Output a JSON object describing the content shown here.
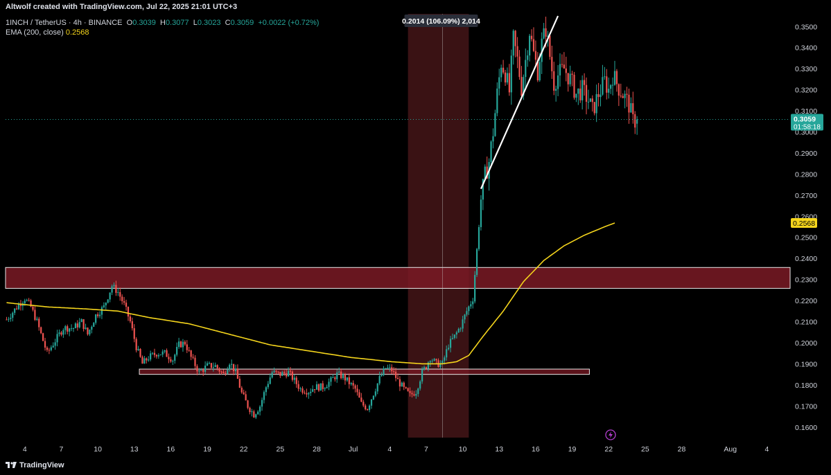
{
  "header": {
    "credit": "Altwolf created with TradingView.com, Jul 22, 2025 21:01 UTC+3"
  },
  "legend": {
    "symbol": "1INCH / TetherUS · 4h · BINANCE",
    "o_label": "O",
    "o": "0.3039",
    "h_label": "H",
    "h": "0.3077",
    "l_label": "L",
    "l": "0.3023",
    "c_label": "C",
    "c": "0.3059",
    "change": "+0.0022 (+0.72%)",
    "ema_label": "EMA (200, close)",
    "ema_value": "0.2568"
  },
  "footer": {
    "brand": "TradingView"
  },
  "colors": {
    "up": "#26a69a",
    "down": "#ef5350",
    "ema": "#f5d51c",
    "zone": "#7a1a24",
    "measure": "#3a1214",
    "price_tag": "#26a69a"
  },
  "chart_data": {
    "type": "candlestick",
    "ylim": [
      0.155,
      0.356
    ],
    "yticks": [
      "0.1600",
      "0.1700",
      "0.1800",
      "0.1900",
      "0.2000",
      "0.2100",
      "0.2200",
      "0.2300",
      "0.2400",
      "0.2500",
      "0.2600",
      "0.2700",
      "0.2800",
      "0.2900",
      "0.3000",
      "0.3100",
      "0.3200",
      "0.3300",
      "0.3400",
      "0.3500"
    ],
    "xlabels": [
      {
        "label": "4",
        "bar": 9
      },
      {
        "label": "7",
        "bar": 27
      },
      {
        "label": "10",
        "bar": 45
      },
      {
        "label": "13",
        "bar": 63
      },
      {
        "label": "16",
        "bar": 81
      },
      {
        "label": "19",
        "bar": 99
      },
      {
        "label": "22",
        "bar": 117
      },
      {
        "label": "25",
        "bar": 135
      },
      {
        "label": "28",
        "bar": 153
      },
      {
        "label": "Jul",
        "bar": 171
      },
      {
        "label": "4",
        "bar": 189
      },
      {
        "label": "7",
        "bar": 207
      },
      {
        "label": "10",
        "bar": 225
      },
      {
        "label": "13",
        "bar": 243
      },
      {
        "label": "16",
        "bar": 261
      },
      {
        "label": "19",
        "bar": 279
      },
      {
        "label": "22",
        "bar": 297
      },
      {
        "label": "25",
        "bar": 315
      },
      {
        "label": "28",
        "bar": 333
      },
      {
        "label": "Aug",
        "bar": 357
      },
      {
        "label": "4",
        "bar": 375
      }
    ],
    "bars_total": 387,
    "close_anchors": [
      [
        0,
        0.211
      ],
      [
        6,
        0.218
      ],
      [
        9,
        0.221
      ],
      [
        12,
        0.217
      ],
      [
        15,
        0.21
      ],
      [
        20,
        0.195
      ],
      [
        24,
        0.201
      ],
      [
        28,
        0.207
      ],
      [
        33,
        0.207
      ],
      [
        37,
        0.21
      ],
      [
        40,
        0.204
      ],
      [
        44,
        0.213
      ],
      [
        48,
        0.217
      ],
      [
        52,
        0.227
      ],
      [
        55,
        0.224
      ],
      [
        58,
        0.218
      ],
      [
        61,
        0.21
      ],
      [
        64,
        0.198
      ],
      [
        67,
        0.19
      ],
      [
        70,
        0.193
      ],
      [
        74,
        0.195
      ],
      [
        78,
        0.195
      ],
      [
        82,
        0.192
      ],
      [
        85,
        0.199
      ],
      [
        88,
        0.2
      ],
      [
        91,
        0.193
      ],
      [
        95,
        0.186
      ],
      [
        99,
        0.189
      ],
      [
        103,
        0.189
      ],
      [
        107,
        0.185
      ],
      [
        110,
        0.191
      ],
      [
        113,
        0.186
      ],
      [
        116,
        0.176
      ],
      [
        119,
        0.17
      ],
      [
        122,
        0.166
      ],
      [
        125,
        0.17
      ],
      [
        128,
        0.179
      ],
      [
        131,
        0.186
      ],
      [
        135,
        0.185
      ],
      [
        139,
        0.186
      ],
      [
        142,
        0.182
      ],
      [
        145,
        0.178
      ],
      [
        149,
        0.177
      ],
      [
        152,
        0.179
      ],
      [
        156,
        0.179
      ],
      [
        160,
        0.182
      ],
      [
        163,
        0.185
      ],
      [
        166,
        0.184
      ],
      [
        169,
        0.181
      ],
      [
        172,
        0.178
      ],
      [
        175,
        0.171
      ],
      [
        178,
        0.169
      ],
      [
        181,
        0.176
      ],
      [
        184,
        0.183
      ],
      [
        187,
        0.188
      ],
      [
        190,
        0.187
      ],
      [
        193,
        0.182
      ],
      [
        196,
        0.178
      ],
      [
        199,
        0.175
      ],
      [
        202,
        0.177
      ],
      [
        205,
        0.186
      ],
      [
        207,
        0.189
      ],
      [
        209,
        0.193
      ],
      [
        212,
        0.19
      ],
      [
        215,
        0.19
      ],
      [
        218,
        0.199
      ],
      [
        221,
        0.203
      ],
      [
        224,
        0.208
      ],
      [
        227,
        0.215
      ],
      [
        230,
        0.221
      ],
      [
        232,
        0.244
      ],
      [
        234,
        0.268
      ],
      [
        236,
        0.279
      ],
      [
        238,
        0.286
      ],
      [
        240,
        0.3
      ],
      [
        242,
        0.318
      ],
      [
        244,
        0.333
      ],
      [
        246,
        0.328
      ],
      [
        248,
        0.319
      ],
      [
        250,
        0.344
      ],
      [
        252,
        0.334
      ],
      [
        254,
        0.321
      ],
      [
        256,
        0.334
      ],
      [
        258,
        0.348
      ],
      [
        260,
        0.337
      ],
      [
        262,
        0.329
      ],
      [
        264,
        0.342
      ],
      [
        266,
        0.349
      ],
      [
        268,
        0.336
      ],
      [
        270,
        0.323
      ],
      [
        272,
        0.327
      ],
      [
        275,
        0.33
      ],
      [
        278,
        0.325
      ],
      [
        281,
        0.318
      ],
      [
        284,
        0.32
      ],
      [
        287,
        0.315
      ],
      [
        289,
        0.31
      ],
      [
        292,
        0.318
      ],
      [
        295,
        0.324
      ],
      [
        297,
        0.32
      ],
      [
        299,
        0.327
      ],
      [
        302,
        0.321
      ],
      [
        304,
        0.318
      ],
      [
        307,
        0.313
      ],
      [
        309,
        0.305
      ],
      [
        311,
        0.306
      ]
    ],
    "ema_anchors": [
      [
        0,
        0.219
      ],
      [
        20,
        0.217
      ],
      [
        40,
        0.216
      ],
      [
        55,
        0.215
      ],
      [
        70,
        0.212
      ],
      [
        90,
        0.209
      ],
      [
        110,
        0.204
      ],
      [
        130,
        0.199
      ],
      [
        150,
        0.196
      ],
      [
        170,
        0.193
      ],
      [
        190,
        0.191
      ],
      [
        205,
        0.19
      ],
      [
        215,
        0.19
      ],
      [
        222,
        0.191
      ],
      [
        228,
        0.194
      ],
      [
        235,
        0.203
      ],
      [
        245,
        0.215
      ],
      [
        255,
        0.229
      ],
      [
        265,
        0.239
      ],
      [
        275,
        0.246
      ],
      [
        285,
        0.251
      ],
      [
        295,
        0.255
      ],
      [
        300,
        0.2568
      ]
    ],
    "zones": [
      {
        "top": 0.2357,
        "bottom": 0.2258,
        "bar_start": 0,
        "bar_end": 387
      },
      {
        "top": 0.1875,
        "bottom": 0.185,
        "bar_start": 66,
        "bar_end": 288
      }
    ],
    "measure": {
      "bar_start": 198,
      "bar_end": 228,
      "label": "0.2014 (106.09%) 2,014"
    },
    "trendline": {
      "bar_start": 234,
      "price_start": 0.273,
      "bar_end": 272,
      "price_end": 0.355
    },
    "last_price": {
      "price": "0.3059",
      "countdown": "01:58:18"
    },
    "ema_tag": "0.2568"
  }
}
